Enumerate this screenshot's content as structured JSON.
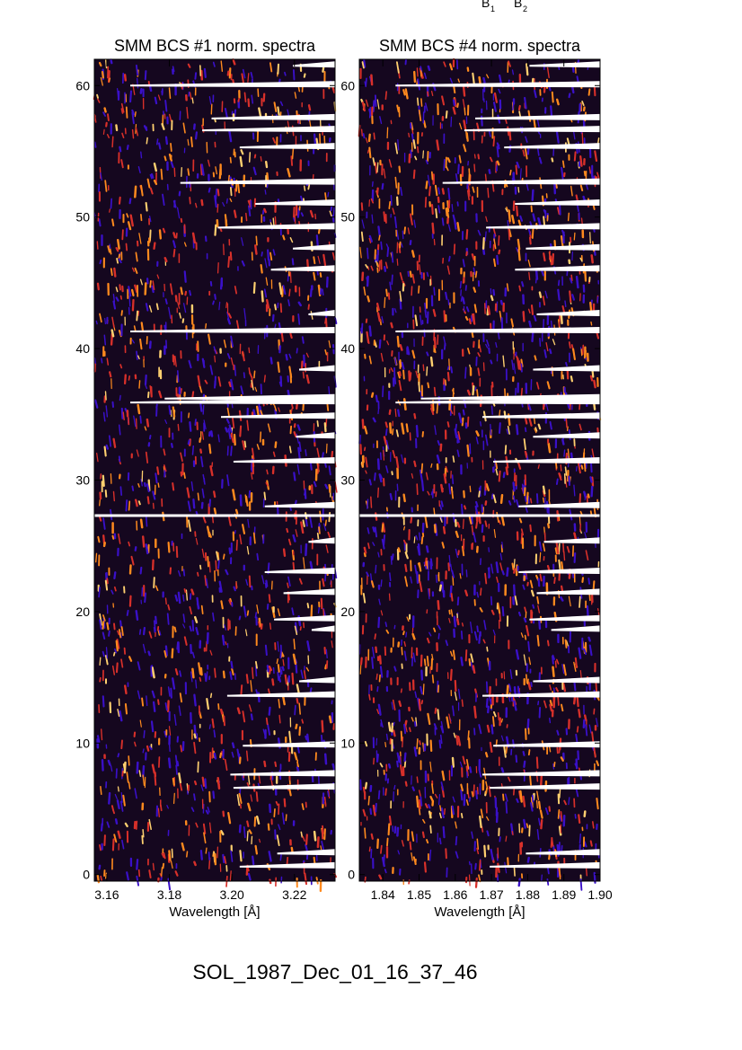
{
  "header_labels": [
    "B",
    "1",
    "B",
    "2"
  ],
  "bottom_title": "SOL_1987_Dec_01_16_37_46",
  "chart_data": [
    {
      "type": "heatmap",
      "title": "SMM BCS #1 norm. spectra",
      "xlabel": "Wavelength [Å]",
      "ylabel": "",
      "xticks": [
        "3.16",
        "3.18",
        "3.20",
        "3.22"
      ],
      "xtick_values": [
        3.16,
        3.18,
        3.2,
        3.22
      ],
      "xlim": [
        3.156,
        3.233
      ],
      "yticks": [
        "0",
        "10",
        "20",
        "30",
        "40",
        "50",
        "60"
      ],
      "ylim": [
        -0.5,
        62
      ],
      "grid": false,
      "colors": [
        "#15071f",
        "#2a0a4e",
        "#3a10c8",
        "#d8302a",
        "#ff8a1e",
        "#ffd070"
      ],
      "separator_row": 27.3,
      "missing_rows": [
        {
          "y": 61.5,
          "x_start": 3.2195
        },
        {
          "y": 60.0,
          "x_start": 3.1675
        },
        {
          "y": 57.5,
          "x_start": 3.1935
        },
        {
          "y": 56.6,
          "x_start": 3.1905
        },
        {
          "y": 55.3,
          "x_start": 3.2025
        },
        {
          "y": 52.6,
          "x_start": 3.1835
        },
        {
          "y": 51.0,
          "x_start": 3.2075
        },
        {
          "y": 49.2,
          "x_start": 3.1955
        },
        {
          "y": 47.6,
          "x_start": 3.2195
        },
        {
          "y": 46.0,
          "x_start": 3.2125
        },
        {
          "y": 42.6,
          "x_start": 3.2245
        },
        {
          "y": 41.3,
          "x_start": 3.1675
        },
        {
          "y": 38.4,
          "x_start": 3.2215
        },
        {
          "y": 36.2,
          "x_start": 3.1785
        },
        {
          "y": 35.9,
          "x_start": 3.1675
        },
        {
          "y": 34.8,
          "x_start": 3.1965
        },
        {
          "y": 33.3,
          "x_start": 3.2205
        },
        {
          "y": 31.4,
          "x_start": 3.2005
        },
        {
          "y": 28.0,
          "x_start": 3.2105
        },
        {
          "y": 25.3,
          "x_start": 3.2245
        },
        {
          "y": 23.0,
          "x_start": 3.2105
        },
        {
          "y": 21.4,
          "x_start": 3.2165
        },
        {
          "y": 19.4,
          "x_start": 3.2135
        },
        {
          "y": 18.6,
          "x_start": 3.2255
        },
        {
          "y": 14.7,
          "x_start": 3.2215
        },
        {
          "y": 13.6,
          "x_start": 3.1985
        },
        {
          "y": 9.8,
          "x_start": 3.2035
        },
        {
          "y": 7.6,
          "x_start": 3.1995
        },
        {
          "y": 6.6,
          "x_start": 3.2005
        },
        {
          "y": 1.6,
          "x_start": 3.2145
        },
        {
          "y": 0.6,
          "x_start": 3.2025
        }
      ]
    },
    {
      "type": "heatmap",
      "title": "SMM BCS #4 norm. spectra",
      "xlabel": "Wavelength [Å]",
      "ylabel": "",
      "xticks": [
        "1.84",
        "1.85",
        "1.86",
        "1.87",
        "1.88",
        "1.89",
        "1.90"
      ],
      "xtick_values": [
        1.84,
        1.85,
        1.86,
        1.87,
        1.88,
        1.89,
        1.9
      ],
      "xlim": [
        1.8335,
        1.9
      ],
      "yticks": [
        "0",
        "10",
        "20",
        "30",
        "40",
        "50",
        "60"
      ],
      "ylim": [
        -0.5,
        62
      ],
      "grid": false,
      "colors": [
        "#15071f",
        "#2a0a4e",
        "#3a10c8",
        "#d8302a",
        "#ff8a1e",
        "#ffd070"
      ],
      "separator_row": 27.3,
      "missing_rows": [
        {
          "y": 61.5,
          "x_start": 1.8805
        },
        {
          "y": 60.0,
          "x_start": 1.8435
        },
        {
          "y": 57.5,
          "x_start": 1.8655
        },
        {
          "y": 56.6,
          "x_start": 1.8625
        },
        {
          "y": 55.3,
          "x_start": 1.8735
        },
        {
          "y": 52.6,
          "x_start": 1.8565
        },
        {
          "y": 51.0,
          "x_start": 1.8765
        },
        {
          "y": 49.2,
          "x_start": 1.8685
        },
        {
          "y": 47.6,
          "x_start": 1.8795
        },
        {
          "y": 46.0,
          "x_start": 1.8765
        },
        {
          "y": 42.6,
          "x_start": 1.8825
        },
        {
          "y": 41.3,
          "x_start": 1.8435
        },
        {
          "y": 38.4,
          "x_start": 1.8815
        },
        {
          "y": 36.2,
          "x_start": 1.8505
        },
        {
          "y": 35.9,
          "x_start": 1.8435
        },
        {
          "y": 34.8,
          "x_start": 1.8675
        },
        {
          "y": 33.3,
          "x_start": 1.8815
        },
        {
          "y": 31.4,
          "x_start": 1.8705
        },
        {
          "y": 28.0,
          "x_start": 1.8775
        },
        {
          "y": 25.3,
          "x_start": 1.8845
        },
        {
          "y": 23.0,
          "x_start": 1.8775
        },
        {
          "y": 21.4,
          "x_start": 1.8825
        },
        {
          "y": 19.4,
          "x_start": 1.8805
        },
        {
          "y": 18.6,
          "x_start": 1.8865
        },
        {
          "y": 14.7,
          "x_start": 1.8815
        },
        {
          "y": 13.6,
          "x_start": 1.8675
        },
        {
          "y": 9.8,
          "x_start": 1.8705
        },
        {
          "y": 7.6,
          "x_start": 1.8675
        },
        {
          "y": 6.6,
          "x_start": 1.8695
        },
        {
          "y": 1.6,
          "x_start": 1.8795
        },
        {
          "y": 0.6,
          "x_start": 1.8695
        }
      ]
    }
  ]
}
